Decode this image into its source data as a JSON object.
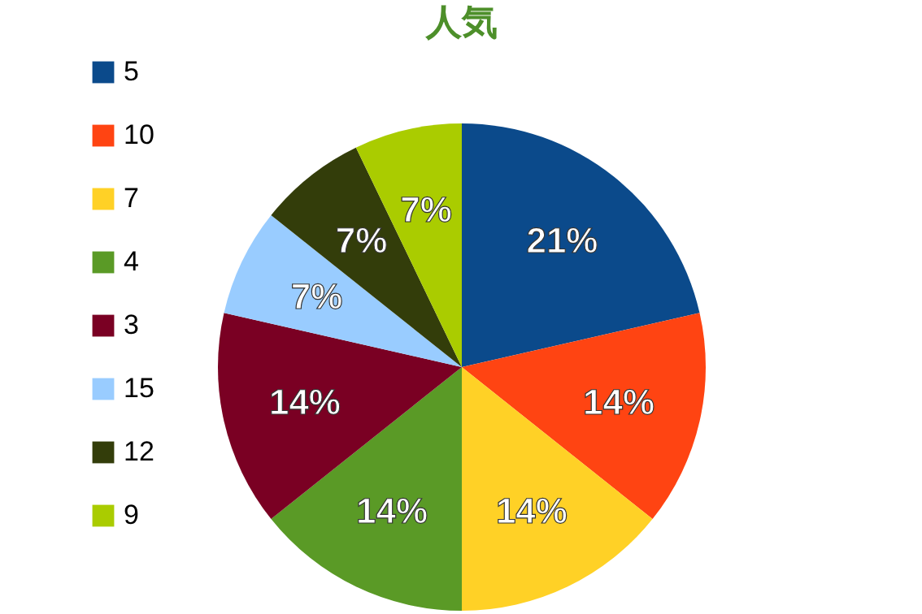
{
  "chart_data": {
    "type": "pie",
    "title": "人気",
    "categories": [
      "5",
      "10",
      "7",
      "4",
      "3",
      "15",
      "12",
      "9"
    ],
    "values": [
      21,
      14,
      14,
      14,
      14,
      7,
      7,
      7
    ],
    "value_labels": [
      "21%",
      "14%",
      "14%",
      "14%",
      "14%",
      "7%",
      "7%",
      "7%"
    ],
    "colors": [
      "#0b4a8b",
      "#ff4412",
      "#ffd126",
      "#5a9a26",
      "#7a0023",
      "#99ccff",
      "#333d0a",
      "#aacc00"
    ],
    "legend": "left"
  }
}
